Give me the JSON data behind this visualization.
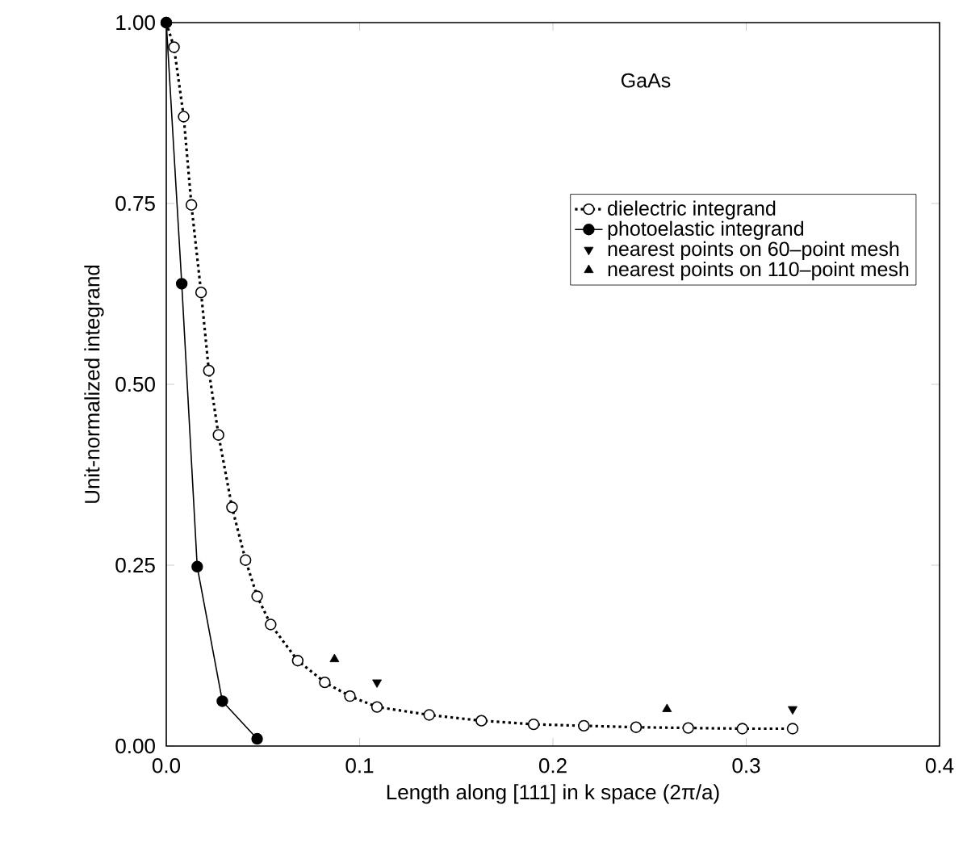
{
  "chart_data": {
    "type": "line",
    "xlabel": "Length along [111] in k space (2π/a)",
    "ylabel": "Unit-normalized integrand",
    "annotations": [
      "GaAs"
    ],
    "xlim": [
      0,
      0.4
    ],
    "ylim": [
      0,
      1
    ],
    "xticks": [
      {
        "value": 0,
        "label": "0.0"
      },
      {
        "value": 0.1,
        "label": "0.1"
      },
      {
        "value": 0.2,
        "label": "0.2"
      },
      {
        "value": 0.3,
        "label": "0.3"
      },
      {
        "value": 0.4,
        "label": "0.4"
      }
    ],
    "yticks": [
      {
        "value": 0,
        "label": "0.00"
      },
      {
        "value": 0.25,
        "label": "0.25"
      },
      {
        "value": 0.5,
        "label": "0.50"
      },
      {
        "value": 0.75,
        "label": "0.75"
      },
      {
        "value": 1,
        "label": "1.00"
      }
    ],
    "legend": "right",
    "series": [
      {
        "name": "dielectric integrand",
        "color": "#000000",
        "marker": "circle",
        "line_style": "dotted",
        "x": [
          0,
          0.004,
          0.009,
          0.013,
          0.018,
          0.022,
          0.027,
          0.034,
          0.041,
          0.047,
          0.054,
          0.068,
          0.082,
          0.095,
          0.109,
          0.136,
          0.163,
          0.19,
          0.216,
          0.243,
          0.27,
          0.298,
          0.324
        ],
        "values": [
          1,
          0.966,
          0.87,
          0.748,
          0.627,
          0.519,
          0.43,
          0.33,
          0.257,
          0.207,
          0.168,
          0.118,
          0.088,
          0.069,
          0.054,
          0.043,
          0.035,
          0.03,
          0.028,
          0.026,
          0.025,
          0.024,
          0.024
        ]
      },
      {
        "name": "photoelastic integrand",
        "color": "#000000",
        "marker": "circle",
        "line_style": "solid",
        "x": [
          0,
          0.008,
          0.016,
          0.029,
          0.047
        ],
        "values": [
          1,
          0.639,
          0.248,
          0.062,
          0.01
        ]
      },
      {
        "name": "nearest points on 60–point mesh",
        "type": "scatter",
        "color": "#000000",
        "marker": "triangle-down",
        "x": [
          0.109,
          0.324
        ],
        "values": [
          0.088,
          0.051
        ]
      },
      {
        "name": "nearest points on 110–point mesh",
        "type": "scatter",
        "color": "#000000",
        "marker": "triangle",
        "x": [
          0.087,
          0.259
        ],
        "values": [
          0.12,
          0.051
        ]
      }
    ]
  }
}
